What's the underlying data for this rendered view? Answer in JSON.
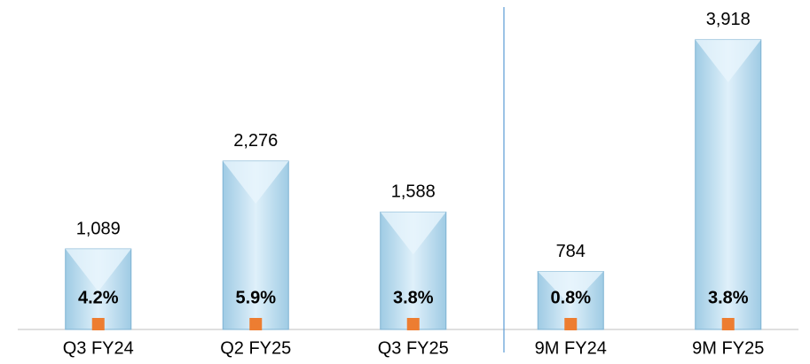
{
  "chart_data": {
    "type": "bar",
    "categories": [
      "Q3 FY24",
      "Q2 FY25",
      "Q3 FY25",
      "9M FY24",
      "9M FY25"
    ],
    "series": [
      {
        "color": "#bfe0f3",
        "values": [
          1089,
          2276,
          1588,
          784,
          3918
        ],
        "value_labels": [
          "1,089",
          "2,276",
          "1,588",
          "784",
          "3,918"
        ]
      },
      {
        "color": "#ed7d31",
        "values": [
          4.2,
          5.9,
          3.8,
          0.8,
          3.8
        ],
        "value_labels": [
          "4.2%",
          "5.9%",
          "3.8%",
          "0.8%",
          "3.8%"
        ]
      }
    ]
  }
}
